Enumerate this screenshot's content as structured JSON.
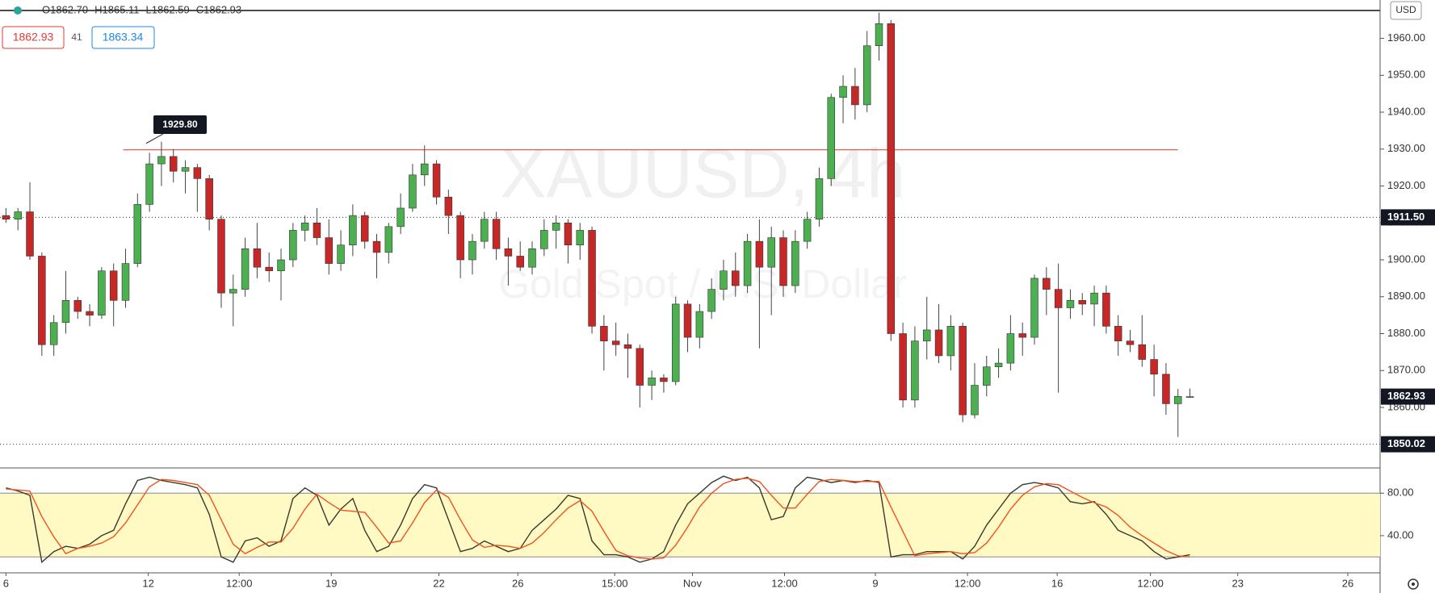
{
  "header": {
    "ohlc": [
      "O1862.70",
      "H1865.11",
      "L1862.59",
      "C1862.93"
    ],
    "sell": "1862.93",
    "spread": "41",
    "buy": "1863.34",
    "currency": "USD",
    "watermark": "XAUUSD, 4h",
    "watermark_sub": "Gold Spot / U.S. Dollar"
  },
  "chart_data": [
    {
      "type": "candlestick",
      "up_color": "#4caf50",
      "down_color": "#c62828",
      "wick_color": "#444444",
      "xlim": [
        -0.5,
        114.9
      ],
      "ylim": [
        1843.6,
        1970.4
      ],
      "yticks": [
        {
          "value": 1860,
          "label": "1860.00"
        },
        {
          "value": 1870,
          "label": "1870.00"
        },
        {
          "value": 1880,
          "label": "1880.00"
        },
        {
          "value": 1890,
          "label": "1890.00"
        },
        {
          "value": 1900,
          "label": "1900.00"
        },
        {
          "value": 1910,
          "label": "1910.00"
        },
        {
          "value": 1920,
          "label": "1920.00"
        },
        {
          "value": 1930,
          "label": "1930.00"
        },
        {
          "value": 1940,
          "label": "1940.00"
        },
        {
          "value": 1950,
          "label": "1950.00"
        },
        {
          "value": 1960,
          "label": "1960.00"
        }
      ],
      "price_labels": [
        {
          "value": 1911.5,
          "label": "1911.50",
          "line": true
        },
        {
          "value": 1862.93,
          "label": "1862.93",
          "line": false
        },
        {
          "value": 1850.02,
          "label": "1850.02",
          "line": true
        }
      ],
      "annotations": [
        {
          "value": 1929.8,
          "label": "1929.80",
          "color": "#f44336"
        }
      ],
      "ohlc": [
        [
          1912,
          1914,
          1910,
          1911
        ],
        [
          1911,
          1914,
          1908,
          1913
        ],
        [
          1913,
          1921,
          1900,
          1901
        ],
        [
          1901,
          1902,
          1874,
          1877
        ],
        [
          1877,
          1885,
          1874,
          1883
        ],
        [
          1883,
          1897,
          1880,
          1889
        ],
        [
          1889,
          1890,
          1884,
          1886
        ],
        [
          1886,
          1888,
          1882,
          1885
        ],
        [
          1885,
          1898,
          1884,
          1897
        ],
        [
          1897,
          1899,
          1882,
          1889
        ],
        [
          1889,
          1903,
          1887,
          1899
        ],
        [
          1899,
          1918,
          1898,
          1915
        ],
        [
          1915,
          1929,
          1913,
          1926
        ],
        [
          1926,
          1932,
          1920,
          1928
        ],
        [
          1928,
          1930,
          1921,
          1924
        ],
        [
          1924,
          1927,
          1918,
          1925
        ],
        [
          1925,
          1926,
          1913,
          1922
        ],
        [
          1922,
          1923,
          1908,
          1911
        ],
        [
          1911,
          1912,
          1887,
          1891
        ],
        [
          1891,
          1896,
          1882,
          1892
        ],
        [
          1892,
          1906,
          1890,
          1903
        ],
        [
          1903,
          1910,
          1895,
          1898
        ],
        [
          1898,
          1902,
          1894,
          1897
        ],
        [
          1897,
          1903,
          1889,
          1900
        ],
        [
          1900,
          1910,
          1898,
          1908
        ],
        [
          1908,
          1912,
          1905,
          1910
        ],
        [
          1910,
          1914,
          1904,
          1906
        ],
        [
          1906,
          1911,
          1896,
          1899
        ],
        [
          1899,
          1908,
          1897,
          1904
        ],
        [
          1904,
          1915,
          1901,
          1912
        ],
        [
          1912,
          1913,
          1903,
          1905
        ],
        [
          1905,
          1907,
          1895,
          1902
        ],
        [
          1902,
          1910,
          1899,
          1909
        ],
        [
          1909,
          1918,
          1907,
          1914
        ],
        [
          1914,
          1926,
          1913,
          1923
        ],
        [
          1923,
          1931,
          1920,
          1926
        ],
        [
          1926,
          1927,
          1915,
          1917
        ],
        [
          1917,
          1919,
          1907,
          1912
        ],
        [
          1912,
          1913,
          1895,
          1900
        ],
        [
          1900,
          1907,
          1896,
          1905
        ],
        [
          1905,
          1913,
          1903,
          1911
        ],
        [
          1911,
          1913,
          1900,
          1903
        ],
        [
          1903,
          1906,
          1893,
          1901
        ],
        [
          1901,
          1905,
          1897,
          1898
        ],
        [
          1898,
          1905,
          1896,
          1903
        ],
        [
          1903,
          1911,
          1901,
          1908
        ],
        [
          1908,
          1912,
          1903,
          1910
        ],
        [
          1910,
          1911,
          1899,
          1904
        ],
        [
          1904,
          1910,
          1900,
          1908
        ],
        [
          1908,
          1909,
          1880,
          1882
        ],
        [
          1882,
          1885,
          1870,
          1878
        ],
        [
          1878,
          1883,
          1874,
          1877
        ],
        [
          1877,
          1880,
          1868,
          1876
        ],
        [
          1876,
          1877,
          1860,
          1866
        ],
        [
          1866,
          1870,
          1862,
          1868
        ],
        [
          1868,
          1869,
          1864,
          1867
        ],
        [
          1867,
          1890,
          1866,
          1888
        ],
        [
          1888,
          1889,
          1875,
          1879
        ],
        [
          1879,
          1888,
          1876,
          1886
        ],
        [
          1886,
          1895,
          1884,
          1892
        ],
        [
          1892,
          1900,
          1889,
          1897
        ],
        [
          1897,
          1902,
          1890,
          1893
        ],
        [
          1893,
          1907,
          1891,
          1905
        ],
        [
          1905,
          1911,
          1876,
          1898
        ],
        [
          1898,
          1909,
          1885,
          1906
        ],
        [
          1906,
          1908,
          1890,
          1893
        ],
        [
          1893,
          1908,
          1891,
          1905
        ],
        [
          1905,
          1913,
          1903,
          1911
        ],
        [
          1911,
          1925,
          1909,
          1922
        ],
        [
          1922,
          1945,
          1920,
          1944
        ],
        [
          1944,
          1950,
          1937,
          1947
        ],
        [
          1947,
          1952,
          1938,
          1942
        ],
        [
          1942,
          1962,
          1940,
          1958
        ],
        [
          1958,
          1967,
          1954,
          1964
        ],
        [
          1964,
          1965,
          1878,
          1880
        ],
        [
          1880,
          1883,
          1860,
          1862
        ],
        [
          1862,
          1882,
          1860,
          1878
        ],
        [
          1878,
          1890,
          1873,
          1881
        ],
        [
          1881,
          1888,
          1872,
          1874
        ],
        [
          1874,
          1885,
          1870,
          1882
        ],
        [
          1882,
          1883,
          1856,
          1858
        ],
        [
          1858,
          1872,
          1857,
          1866
        ],
        [
          1866,
          1874,
          1863,
          1871
        ],
        [
          1871,
          1876,
          1868,
          1872
        ],
        [
          1872,
          1885,
          1870,
          1880
        ],
        [
          1880,
          1883,
          1874,
          1879
        ],
        [
          1879,
          1896,
          1877,
          1895
        ],
        [
          1895,
          1898,
          1885,
          1892
        ],
        [
          1892,
          1899,
          1864,
          1887
        ],
        [
          1887,
          1892,
          1884,
          1889
        ],
        [
          1889,
          1891,
          1885,
          1888
        ],
        [
          1888,
          1893,
          1882,
          1891
        ],
        [
          1891,
          1893,
          1880,
          1882
        ],
        [
          1882,
          1885,
          1874,
          1878
        ],
        [
          1878,
          1881,
          1875,
          1877
        ],
        [
          1877,
          1885,
          1871,
          1873
        ],
        [
          1873,
          1877,
          1863,
          1869
        ],
        [
          1869,
          1872,
          1858,
          1861
        ],
        [
          1861,
          1865,
          1852,
          1863
        ],
        [
          1862.7,
          1865.11,
          1862.59,
          1862.93
        ]
      ]
    },
    {
      "type": "line",
      "xlim": [
        -0.5,
        114.9
      ],
      "ylim": [
        5,
        103
      ],
      "band": [
        20,
        80
      ],
      "band_color": "#fff9c4",
      "yticks": [
        {
          "value": 40,
          "label": "40.00"
        },
        {
          "value": 80,
          "label": "80.00"
        }
      ],
      "xticks": [
        {
          "value": 0,
          "label": "6"
        },
        {
          "value": 11.9,
          "label": "12"
        },
        {
          "value": 19.5,
          "label": "12:00"
        },
        {
          "value": 27.2,
          "label": "19"
        },
        {
          "value": 36.2,
          "label": "22"
        },
        {
          "value": 42.8,
          "label": "26"
        },
        {
          "value": 50.9,
          "label": "15:00"
        },
        {
          "value": 57.4,
          "label": "Nov"
        },
        {
          "value": 65.1,
          "label": "12:00"
        },
        {
          "value": 72.7,
          "label": "9"
        },
        {
          "value": 80.4,
          "label": "12:00"
        },
        {
          "value": 87.9,
          "label": "16"
        },
        {
          "value": 95.7,
          "label": "12:00"
        },
        {
          "value": 103,
          "label": "23"
        },
        {
          "value": 112.2,
          "label": "26"
        }
      ],
      "series": [
        {
          "color": "#3a3a2a",
          "values": [
            85,
            82,
            78,
            15,
            25,
            30,
            28,
            32,
            40,
            45,
            70,
            92,
            95,
            92,
            90,
            88,
            85,
            60,
            20,
            15,
            35,
            38,
            30,
            35,
            75,
            85,
            78,
            50,
            65,
            75,
            45,
            25,
            30,
            50,
            75,
            88,
            85,
            55,
            25,
            28,
            35,
            30,
            25,
            28,
            45,
            55,
            65,
            78,
            75,
            35,
            22,
            22,
            20,
            15,
            18,
            25,
            50,
            70,
            80,
            90,
            96,
            92,
            95,
            85,
            55,
            58,
            85,
            95,
            93,
            90,
            92,
            90,
            92,
            90,
            20,
            22,
            22,
            25,
            25,
            25,
            18,
            30,
            50,
            65,
            80,
            88,
            90,
            88,
            85,
            72,
            70,
            72,
            60,
            45,
            40,
            35,
            25,
            18,
            20,
            22
          ]
        },
        {
          "color": "#f4511e",
          "values": [
            84,
            83,
            82,
            58,
            39,
            23,
            28,
            30,
            33,
            39,
            52,
            69,
            86,
            93,
            92,
            90,
            88,
            78,
            55,
            32,
            23,
            29,
            34,
            34,
            47,
            65,
            79,
            71,
            64,
            63,
            62,
            48,
            33,
            35,
            52,
            71,
            83,
            76,
            55,
            36,
            29,
            31,
            30,
            28,
            33,
            43,
            55,
            66,
            73,
            63,
            44,
            26,
            21,
            19,
            18,
            19,
            31,
            48,
            67,
            80,
            89,
            93,
            94,
            91,
            78,
            66,
            66,
            79,
            91,
            93,
            92,
            91,
            91,
            91,
            67,
            44,
            21,
            23,
            24,
            25,
            23,
            24,
            33,
            48,
            65,
            78,
            86,
            89,
            88,
            82,
            76,
            71,
            67,
            59,
            48,
            40,
            33,
            26,
            21,
            20
          ]
        }
      ]
    }
  ]
}
